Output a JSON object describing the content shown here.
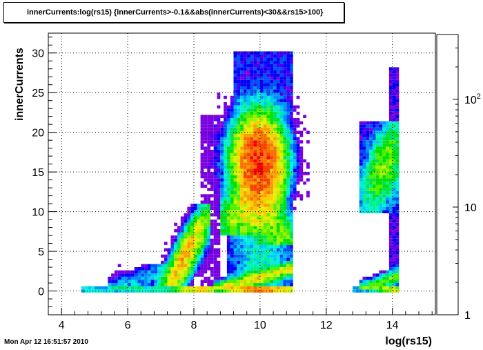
{
  "title": "innerCurrents:log(rs15) {innerCurrents>-0.1&&abs(innerCurrents)<30&&rs15>100}",
  "footer": {
    "timestamp": "Mon Apr 12 16:51:57 2010"
  },
  "chart_data": {
    "type": "heatmap",
    "title": "innerCurrents:log(rs15) {innerCurrents>-0.1&&abs(innerCurrents)<30&&rs15>100}",
    "xlabel": "log(rs15)",
    "ylabel": "innerCurrents",
    "xlim": [
      3.6,
      15.3
    ],
    "ylim": [
      -3.0,
      32.5
    ],
    "x_ticks": [
      4,
      6,
      8,
      10,
      12,
      14
    ],
    "y_ticks": [
      0,
      5,
      10,
      15,
      20,
      25,
      30
    ],
    "z_scale": "log",
    "z_range": [
      1,
      400
    ],
    "z_ticks": [
      {
        "value": 1,
        "label": "1"
      },
      {
        "value": 10,
        "label": "10"
      },
      {
        "value": 100,
        "label": "10",
        "sup": "2"
      }
    ],
    "grid": true,
    "palette": [
      "#7a00e0",
      "#4000f8",
      "#0000f8",
      "#0050f8",
      "#0090f8",
      "#00c8f8",
      "#00f0d8",
      "#00f090",
      "#00e050",
      "#00e000",
      "#50f000",
      "#a0f000",
      "#e0f000",
      "#f8d000",
      "#f8a000",
      "#f87000",
      "#f84000",
      "#f80000"
    ],
    "clusters": [
      {
        "x": [
          4.6,
          8.6
        ],
        "y": [
          -0.1,
          0.3
        ],
        "peak": 80,
        "note": "baseline strip left"
      },
      {
        "x": [
          8.5,
          11.0
        ],
        "y": [
          -0.1,
          0.4
        ],
        "peak": 150,
        "note": "baseline strip center"
      },
      {
        "x": [
          12.8,
          14.2
        ],
        "y": [
          -0.1,
          0.3
        ],
        "peak": 60,
        "note": "baseline strip right"
      },
      {
        "x": [
          7.0,
          8.4
        ],
        "y": [
          0.5,
          10.5
        ],
        "peak": 120,
        "note": "left diagonal band"
      },
      {
        "x": [
          8.8,
          10.8
        ],
        "y": [
          8.0,
          22.5
        ],
        "peak": 300,
        "note": "central peak"
      },
      {
        "x": [
          9.0,
          11.0
        ],
        "y": [
          0.5,
          8.0
        ],
        "peak": 15,
        "note": "central lower tail"
      },
      {
        "x": [
          9.2,
          11.0
        ],
        "y": [
          22.5,
          30.0
        ],
        "peak": 3,
        "note": "central upper scatter"
      },
      {
        "x": [
          13.0,
          14.2
        ],
        "y": [
          10.5,
          21.0
        ],
        "peak": 40,
        "note": "right cluster"
      },
      {
        "x": [
          13.0,
          14.2
        ],
        "y": [
          0.5,
          3.0
        ],
        "peak": 30,
        "note": "right low band"
      }
    ]
  }
}
